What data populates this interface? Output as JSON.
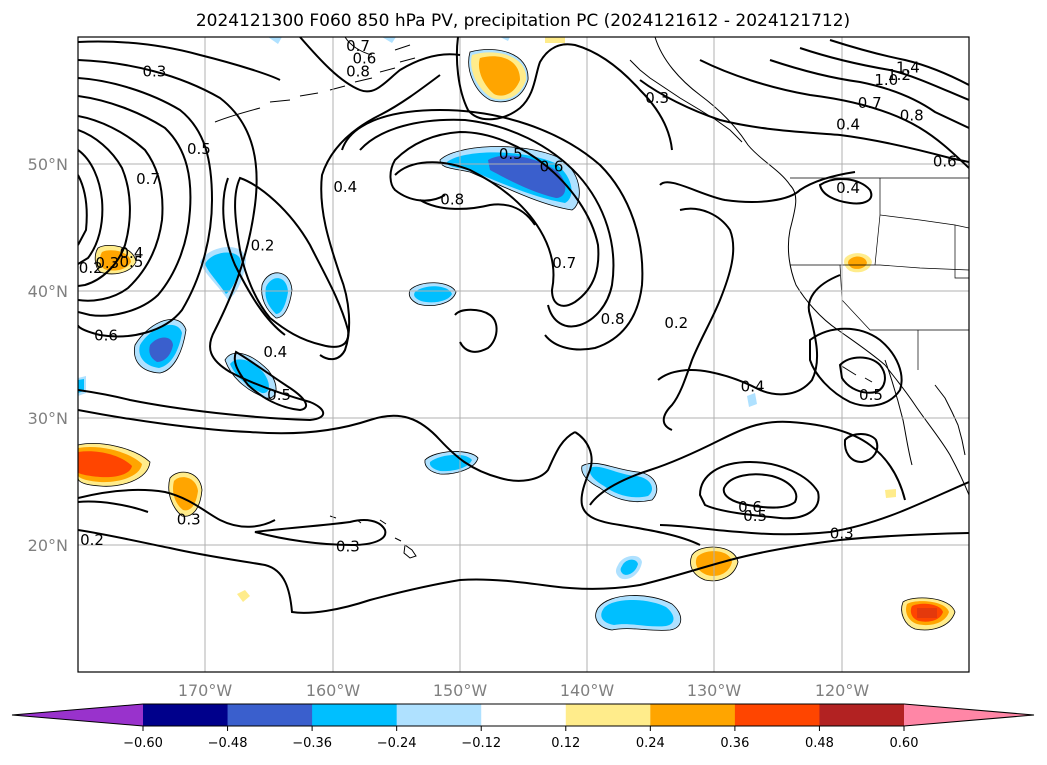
{
  "title": "2024121300 F060 850 hPa PV, precipitation PC (2024121612 - 2024121712)",
  "map": {
    "lon_range": [
      -180,
      -110
    ],
    "lat_range": [
      10,
      60
    ],
    "lat_labels": [
      "50°N",
      "40°N",
      "30°N",
      "20°N"
    ],
    "lon_labels": [
      "170°W",
      "160°W",
      "150°W",
      "140°W",
      "130°W",
      "120°W"
    ],
    "grid": true
  },
  "contour_labels": [
    {
      "text": "0.3",
      "lon": -174,
      "lat": 57.3
    },
    {
      "text": "0.7",
      "lon": -158,
      "lat": 59.3
    },
    {
      "text": "0.6",
      "lon": -157.5,
      "lat": 58.3
    },
    {
      "text": "0.8",
      "lon": -158,
      "lat": 57.3
    },
    {
      "text": "0.5",
      "lon": -170.5,
      "lat": 51.2
    },
    {
      "text": "0.7",
      "lon": -174.5,
      "lat": 48.8
    },
    {
      "text": "0.4",
      "lon": -159,
      "lat": 48.2
    },
    {
      "text": "0.2",
      "lon": -165.5,
      "lat": 43.6
    },
    {
      "text": "0.2",
      "lon": -179,
      "lat": 41.8
    },
    {
      "text": "0.3",
      "lon": -177.7,
      "lat": 42.2
    },
    {
      "text": "0.5",
      "lon": -175.8,
      "lat": 42.3
    },
    {
      "text": "0.4",
      "lon": -175.8,
      "lat": 43.0
    },
    {
      "text": "0.6",
      "lon": -177.8,
      "lat": 36.5
    },
    {
      "text": "0.4",
      "lon": -164.5,
      "lat": 35.2
    },
    {
      "text": "0.5",
      "lon": -164.2,
      "lat": 31.8
    },
    {
      "text": "0.5",
      "lon": -146,
      "lat": 50.8
    },
    {
      "text": "0.6",
      "lon": -142.8,
      "lat": 49.8
    },
    {
      "text": "0.8",
      "lon": -150.6,
      "lat": 47.2
    },
    {
      "text": "0.7",
      "lon": -141.8,
      "lat": 42.2
    },
    {
      "text": "0.8",
      "lon": -138,
      "lat": 37.8
    },
    {
      "text": "0.2",
      "lon": -133,
      "lat": 37.5
    },
    {
      "text": "0.3",
      "lon": -134.5,
      "lat": 55.2
    },
    {
      "text": "1.4",
      "lon": -114.8,
      "lat": 57.6
    },
    {
      "text": "1.2",
      "lon": -115.5,
      "lat": 57.0
    },
    {
      "text": "1.0",
      "lon": -116.5,
      "lat": 56.6
    },
    {
      "text": "0.7",
      "lon": -117.8,
      "lat": 54.8
    },
    {
      "text": "0.8",
      "lon": -114.5,
      "lat": 53.8
    },
    {
      "text": "0.4",
      "lon": -119.5,
      "lat": 53.1
    },
    {
      "text": "0.6",
      "lon": -111.9,
      "lat": 50.2
    },
    {
      "text": "0.4",
      "lon": -119.5,
      "lat": 48.1
    },
    {
      "text": "0.4",
      "lon": -127,
      "lat": 32.5
    },
    {
      "text": "0.5",
      "lon": -117.7,
      "lat": 31.8
    },
    {
      "text": "0.6",
      "lon": -127.2,
      "lat": 23.0
    },
    {
      "text": "0.5",
      "lon": -126.8,
      "lat": 22.3
    },
    {
      "text": "0.3",
      "lon": -120,
      "lat": 20.9
    },
    {
      "text": "0.3",
      "lon": -158.8,
      "lat": 19.9
    },
    {
      "text": "0.2",
      "lon": -178.9,
      "lat": 20.4
    },
    {
      "text": "0.3",
      "lon": -171.3,
      "lat": 22.0
    }
  ],
  "colorbar": {
    "ticks": [
      "−0.60",
      "−0.48",
      "−0.36",
      "−0.24",
      "−0.12",
      "0.12",
      "0.24",
      "0.36",
      "0.48",
      "0.60"
    ],
    "colors": [
      "#9932cc",
      "#00008b",
      "#3a5fcd",
      "#00bfff",
      "#afe1ff",
      "#ffffff",
      "#ffec8b",
      "#ffa500",
      "#ff4500",
      "#b22222",
      "#ff86a6"
    ]
  }
}
